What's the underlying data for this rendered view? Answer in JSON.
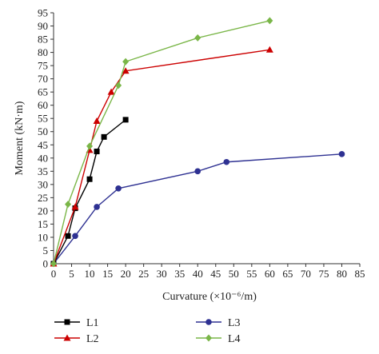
{
  "chart_data": {
    "type": "line",
    "xlabel": "Curvature (×10⁻⁶/m)",
    "ylabel": "Moment (kN·m)",
    "xlim": [
      0,
      85
    ],
    "ylim": [
      0,
      95
    ],
    "x_ticks": [
      0,
      5,
      10,
      15,
      20,
      25,
      30,
      35,
      40,
      45,
      50,
      55,
      60,
      65,
      70,
      75,
      80,
      85
    ],
    "y_ticks": [
      0,
      5,
      10,
      15,
      20,
      25,
      30,
      35,
      40,
      45,
      50,
      55,
      60,
      65,
      70,
      75,
      80,
      85,
      90,
      95
    ],
    "grid": false,
    "legend_position": "bottom",
    "series": [
      {
        "name": "L1",
        "color": "#000000",
        "marker": "square",
        "x": [
          0,
          4,
          6,
          10,
          12,
          14,
          20
        ],
        "y": [
          0,
          10.5,
          21,
          32,
          42.5,
          48,
          54.5
        ]
      },
      {
        "name": "L2",
        "color": "#cc0000",
        "marker": "triangle",
        "x": [
          0,
          6,
          10,
          12,
          16,
          20,
          60
        ],
        "y": [
          0,
          21.5,
          43,
          54,
          65,
          73,
          81
        ]
      },
      {
        "name": "L3",
        "color": "#2e3192",
        "marker": "circle",
        "x": [
          0,
          6,
          12,
          18,
          40,
          48,
          80
        ],
        "y": [
          0,
          10.5,
          21.5,
          28.5,
          35,
          38.5,
          41.5
        ]
      },
      {
        "name": "L4",
        "color": "#7ab648",
        "marker": "diamond",
        "x": [
          0,
          4,
          10,
          18,
          20,
          40,
          60
        ],
        "y": [
          0,
          22.5,
          44.5,
          67.5,
          76.5,
          85.5,
          92
        ]
      }
    ]
  }
}
